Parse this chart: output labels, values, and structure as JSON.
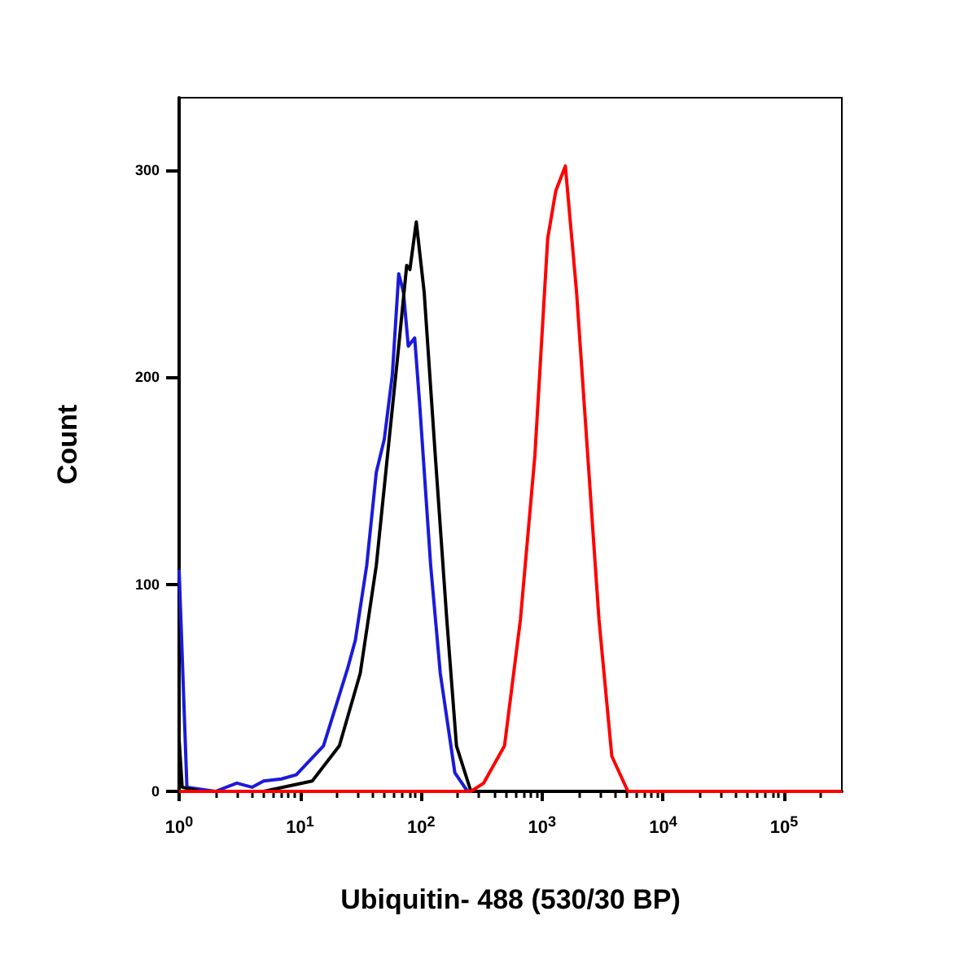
{
  "chart_data": {
    "type": "line",
    "xlabel": "Ubiquitin- 488 (530/30 BP)",
    "ylabel": "Count",
    "log": "x",
    "marker": "none",
    "line_style": "solid",
    "grid": false,
    "xlim": [
      1,
      300000
    ],
    "ylim": [
      0,
      335
    ],
    "xticks": [
      {
        "value": 1,
        "label": "10$^{0}$"
      },
      {
        "value": 10,
        "label": "10$^{1}$"
      },
      {
        "value": 100,
        "label": "10$^{2}$"
      },
      {
        "value": 1000,
        "label": "10$^{3}$"
      },
      {
        "value": 10000,
        "label": "10$^{4}$"
      },
      {
        "value": 100000,
        "label": "10$^{5}$"
      }
    ],
    "yticks": [
      0,
      100,
      200,
      300
    ],
    "series": [
      {
        "color": "#1a1adb",
        "x": [
          1,
          1.16,
          2,
          3,
          4,
          5,
          7,
          9.3,
          15.6,
          24.6,
          28.6,
          35.5,
          42.6,
          49.6,
          57.8,
          65.3,
          71.5,
          78.3,
          88.5,
          97,
          120,
          144,
          190,
          242,
          300000
        ],
        "values": [
          107,
          2,
          0,
          4,
          2,
          5,
          6,
          8,
          22,
          59,
          73,
          109,
          154,
          170,
          201,
          250,
          241,
          215,
          219,
          188,
          109,
          57,
          9,
          0,
          0
        ]
      },
      {
        "color": "#000000",
        "x": [
          1,
          1.06,
          1.5,
          5,
          12.6,
          21.1,
          31.4,
          42.6,
          52.7,
          65.3,
          76,
          80.8,
          91.2,
          106,
          131,
          163,
          196,
          258,
          300000
        ],
        "values": [
          25,
          2,
          0,
          0,
          5,
          22,
          57,
          109,
          162,
          215,
          254,
          252,
          275,
          241,
          162,
          83,
          22,
          0,
          0
        ]
      },
      {
        "color": "#ff0000",
        "x": [
          1,
          258,
          329,
          489,
          662,
          871,
          1112,
          1297,
          1556,
          1927,
          2384,
          2951,
          3767,
          5117,
          300000
        ],
        "values": [
          0,
          0,
          4,
          22,
          83,
          162,
          267,
          290,
          302,
          241,
          162,
          83,
          17,
          0,
          0
        ]
      }
    ]
  }
}
